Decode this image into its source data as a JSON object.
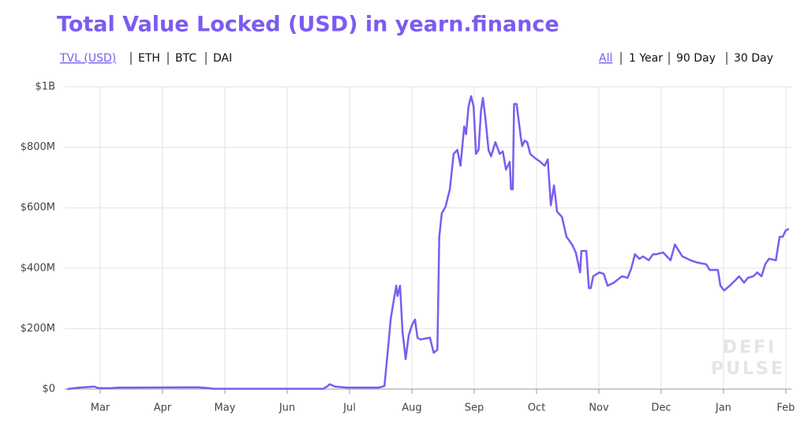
{
  "chart_data": {
    "type": "line",
    "title": "Total Value Locked (USD) in yearn.finance",
    "metric_tabs": [
      "TVL (USD)",
      "ETH",
      "BTC",
      "DAI"
    ],
    "metric_selected": 0,
    "range_tabs": [
      "All",
      "1 Year",
      "90 Day",
      "30 Day"
    ],
    "range_selected": 0,
    "watermark": [
      "DEFI",
      "PULSE"
    ],
    "color": "#7b5cf0",
    "grid": true,
    "xlim": [
      -0.57,
      11.09
    ],
    "xticks": [
      {
        "value": 0,
        "label": "Mar"
      },
      {
        "value": 1,
        "label": "Apr"
      },
      {
        "value": 2,
        "label": "May"
      },
      {
        "value": 3,
        "label": "Jun"
      },
      {
        "value": 4,
        "label": "Jul"
      },
      {
        "value": 5,
        "label": "Aug"
      },
      {
        "value": 6,
        "label": "Sep"
      },
      {
        "value": 7,
        "label": "Oct"
      },
      {
        "value": 8,
        "label": "Nov"
      },
      {
        "value": 9,
        "label": "Dec"
      },
      {
        "value": 10,
        "label": "Jan"
      },
      {
        "value": 11,
        "label": "Feb"
      }
    ],
    "ylim": [
      0,
      1000000000
    ],
    "yticks": [
      {
        "value": 0,
        "label": "$0"
      },
      {
        "value": 200000000,
        "label": "$200M"
      },
      {
        "value": 400000000,
        "label": "$400M"
      },
      {
        "value": 600000000,
        "label": "$600M"
      },
      {
        "value": 800000000,
        "label": "$800M"
      },
      {
        "value": 1000000000,
        "label": "$1B"
      }
    ],
    "x": [
      -0.53,
      -0.34,
      -0.09,
      -0.03,
      0.16,
      0.29,
      0.48,
      1.56,
      1.75,
      1.81,
      3.58,
      3.65,
      3.68,
      3.77,
      3.96,
      4.47,
      4.56,
      4.62,
      4.66,
      4.7,
      4.75,
      4.77,
      4.81,
      4.85,
      4.9,
      4.95,
      5.0,
      5.05,
      5.09,
      5.14,
      5.29,
      5.35,
      5.41,
      5.44,
      5.48,
      5.54,
      5.61,
      5.67,
      5.73,
      5.78,
      5.84,
      5.87,
      5.91,
      5.95,
      5.99,
      6.03,
      6.07,
      6.11,
      6.14,
      6.18,
      6.23,
      6.27,
      6.34,
      6.41,
      6.46,
      6.51,
      6.57,
      6.59,
      6.62,
      6.64,
      6.68,
      6.75,
      6.77,
      6.81,
      6.85,
      6.9,
      6.97,
      7.06,
      7.13,
      7.18,
      7.23,
      7.28,
      7.33,
      7.41,
      7.48,
      7.57,
      7.63,
      7.7,
      7.72,
      7.8,
      7.84,
      7.87,
      7.91,
      8.01,
      8.08,
      8.14,
      8.24,
      8.37,
      8.46,
      8.52,
      8.58,
      8.65,
      8.71,
      8.8,
      8.87,
      8.92,
      9.03,
      9.15,
      9.22,
      9.34,
      9.47,
      9.59,
      9.72,
      9.78,
      9.91,
      9.95,
      10.01,
      10.1,
      10.19,
      10.25,
      10.33,
      10.39,
      10.48,
      10.54,
      10.61,
      10.67,
      10.73,
      10.84,
      10.9,
      10.95,
      11.0,
      11.05
    ],
    "values": [
      0,
      5000000,
      8000000,
      3000000,
      3000000,
      5000000,
      5000000,
      6000000,
      3000000,
      1000000,
      1000000,
      10000000,
      16000000,
      8000000,
      5000000,
      5000000,
      10000000,
      138000000,
      230000000,
      282000000,
      342000000,
      308000000,
      342000000,
      190000000,
      99000000,
      178000000,
      211000000,
      230000000,
      170000000,
      164000000,
      170000000,
      120000000,
      130000000,
      504000000,
      582000000,
      603000000,
      661000000,
      778000000,
      791000000,
      739000000,
      869000000,
      843000000,
      935000000,
      969000000,
      935000000,
      778000000,
      791000000,
      922000000,
      963000000,
      896000000,
      791000000,
      770000000,
      817000000,
      778000000,
      786000000,
      726000000,
      752000000,
      661000000,
      661000000,
      943000000,
      943000000,
      830000000,
      804000000,
      822000000,
      817000000,
      778000000,
      765000000,
      752000000,
      739000000,
      760000000,
      608000000,
      674000000,
      587000000,
      569000000,
      504000000,
      478000000,
      452000000,
      386000000,
      457000000,
      457000000,
      334000000,
      334000000,
      373000000,
      386000000,
      381000000,
      342000000,
      352000000,
      373000000,
      368000000,
      399000000,
      446000000,
      431000000,
      439000000,
      426000000,
      446000000,
      446000000,
      452000000,
      426000000,
      478000000,
      439000000,
      426000000,
      418000000,
      413000000,
      394000000,
      394000000,
      342000000,
      326000000,
      342000000,
      360000000,
      373000000,
      352000000,
      368000000,
      373000000,
      386000000,
      373000000,
      413000000,
      431000000,
      426000000,
      504000000,
      504000000,
      525000000,
      530000000
    ]
  }
}
